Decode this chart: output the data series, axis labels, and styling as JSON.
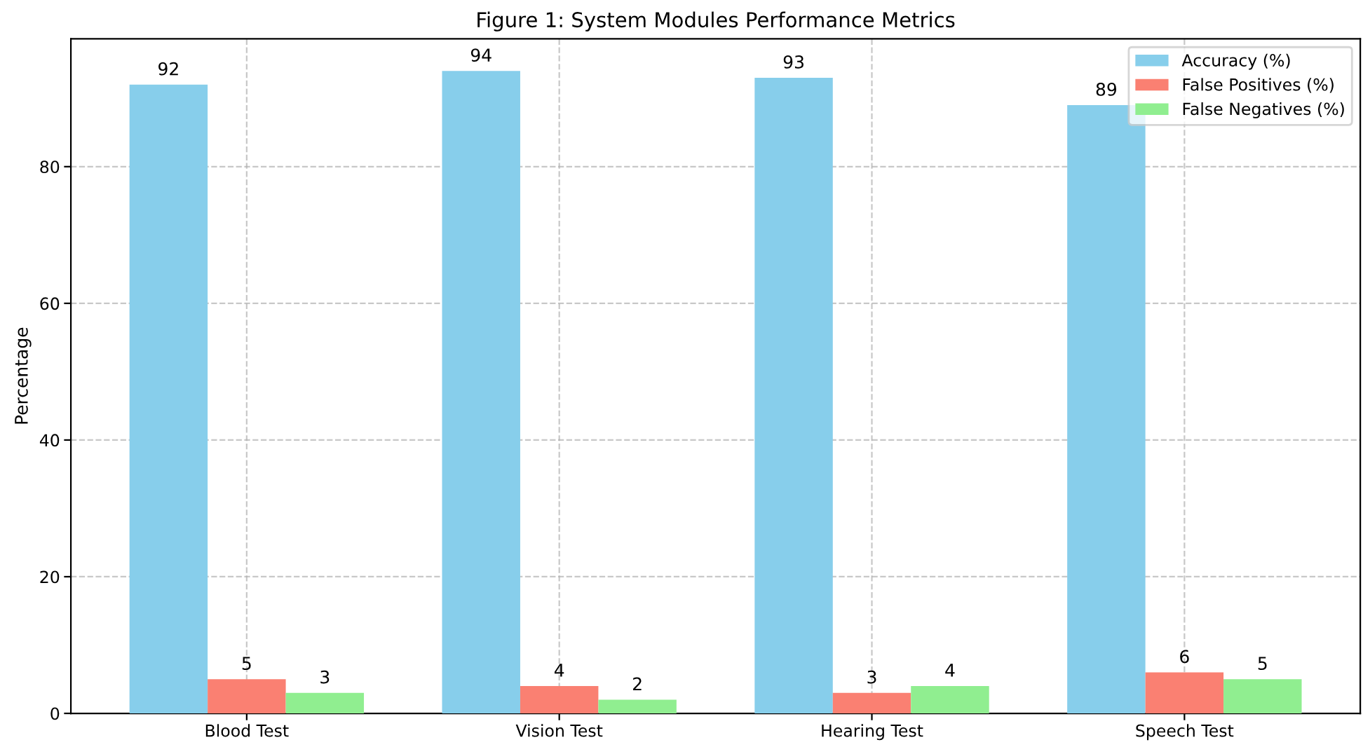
{
  "chart_data": {
    "type": "bar",
    "title": "Figure 1: System Modules Performance Metrics",
    "ylabel": "Percentage",
    "categories": [
      "Blood Test",
      "Vision Test",
      "Hearing Test",
      "Speech Test"
    ],
    "series": [
      {
        "name": "Accuracy (%)",
        "color": "#87ceeb",
        "values": [
          92,
          94,
          93,
          89
        ]
      },
      {
        "name": "False Positives (%)",
        "color": "#fa8072",
        "values": [
          5,
          4,
          3,
          6
        ]
      },
      {
        "name": "False Negatives (%)",
        "color": "#90ee90",
        "values": [
          3,
          2,
          4,
          5
        ]
      }
    ],
    "ylim": [
      0,
      98.7
    ],
    "yticks": [
      0,
      20,
      40,
      60,
      80
    ],
    "grid": true,
    "legend": "top right",
    "data_labels": true
  }
}
